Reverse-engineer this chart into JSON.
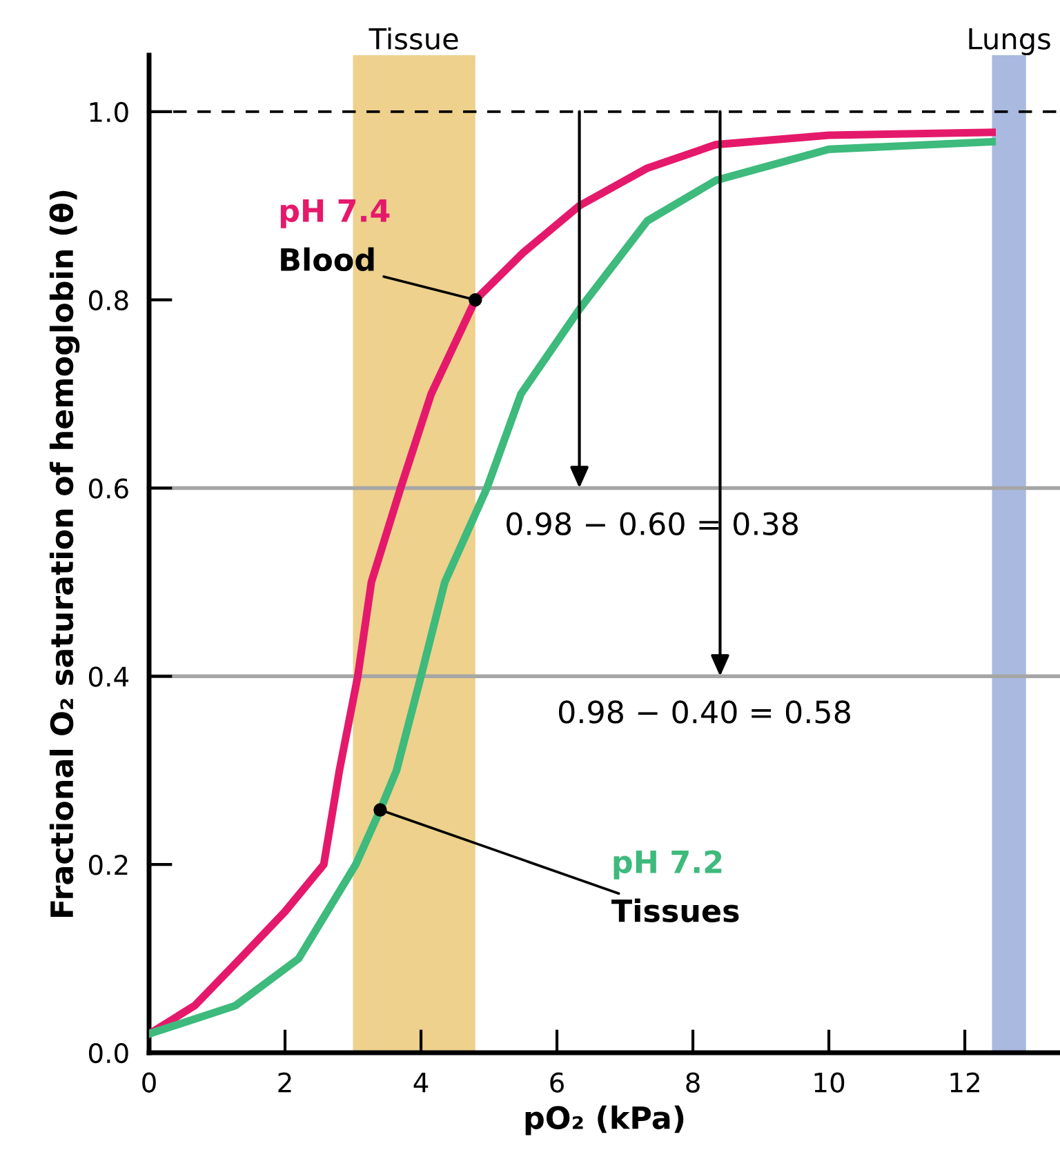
{
  "chart_data": {
    "type": "line",
    "xlabel": "pO₂ (kPa)",
    "ylabel": "Fractional O₂ saturation of hemoglobin (θ)",
    "xlim": [
      0,
      13.4
    ],
    "xticks": [
      0,
      2,
      4,
      6,
      8,
      10,
      12
    ],
    "ylim": [
      0,
      1.06
    ],
    "yticks": [
      {
        "value": 0,
        "label": "0.0"
      },
      {
        "value": 0.2,
        "label": "0.2"
      },
      {
        "value": 0.4,
        "label": "0.4"
      },
      {
        "value": 0.6,
        "label": "0.6"
      },
      {
        "value": 0.8,
        "label": "0.8"
      },
      {
        "value": 1.0,
        "label": "1.0"
      }
    ],
    "grid": false,
    "line_style": "solid",
    "marker": "none",
    "series": [
      {
        "name": "pH 7.4",
        "color": "#e5196b",
        "x": [
          0,
          0.67,
          1.34,
          2.0,
          2.57,
          2.8,
          3.07,
          3.27,
          3.7,
          4.15,
          4.8,
          5.5,
          6.33,
          7.33,
          8.34,
          10,
          12.4
        ],
        "values": [
          0.02,
          0.05,
          0.1,
          0.15,
          0.2,
          0.3,
          0.4,
          0.5,
          0.6,
          0.7,
          0.8,
          0.85,
          0.9,
          0.94,
          0.965,
          0.975,
          0.978
        ]
      },
      {
        "name": "pH 7.2",
        "color": "#3dba7c",
        "x": [
          0,
          1.27,
          2.2,
          3.04,
          3.4,
          3.64,
          4.0,
          4.35,
          4.97,
          5.47,
          6.33,
          7.33,
          8.34,
          10,
          12.4
        ],
        "values": [
          0.02,
          0.05,
          0.1,
          0.2,
          0.258,
          0.3,
          0.4,
          0.5,
          0.6,
          0.7,
          0.79,
          0.884,
          0.927,
          0.96,
          0.968
        ]
      }
    ],
    "ref_lines": [
      {
        "axis": "y",
        "value": 1.0,
        "color": "#000000",
        "line_style": "dashed"
      },
      {
        "axis": "y",
        "value": 0.6,
        "color": "#a6a6a6",
        "line_style": "solid"
      },
      {
        "axis": "y",
        "value": 0.4,
        "color": "#a6a6a6",
        "line_style": "solid"
      }
    ],
    "bands": [
      {
        "axis": "x",
        "from": 3.0,
        "to": 4.8,
        "label": "Tissue",
        "color": "#edd18c"
      },
      {
        "axis": "x",
        "from": 12.4,
        "to": 12.9,
        "label": "Lungs",
        "color": "#a9b9e0"
      }
    ],
    "annotations": [
      {
        "text": "Blood",
        "x": 4.8,
        "y": 0.8
      },
      {
        "text": "Tissues",
        "x": 3.4,
        "y": 0.258
      },
      {
        "text": "0.98 − 0.60 = 0.38",
        "x": 6.33,
        "y": 0.6
      },
      {
        "text": "0.98 − 0.40 = 0.58",
        "x": 8.4,
        "y": 0.4
      }
    ]
  }
}
